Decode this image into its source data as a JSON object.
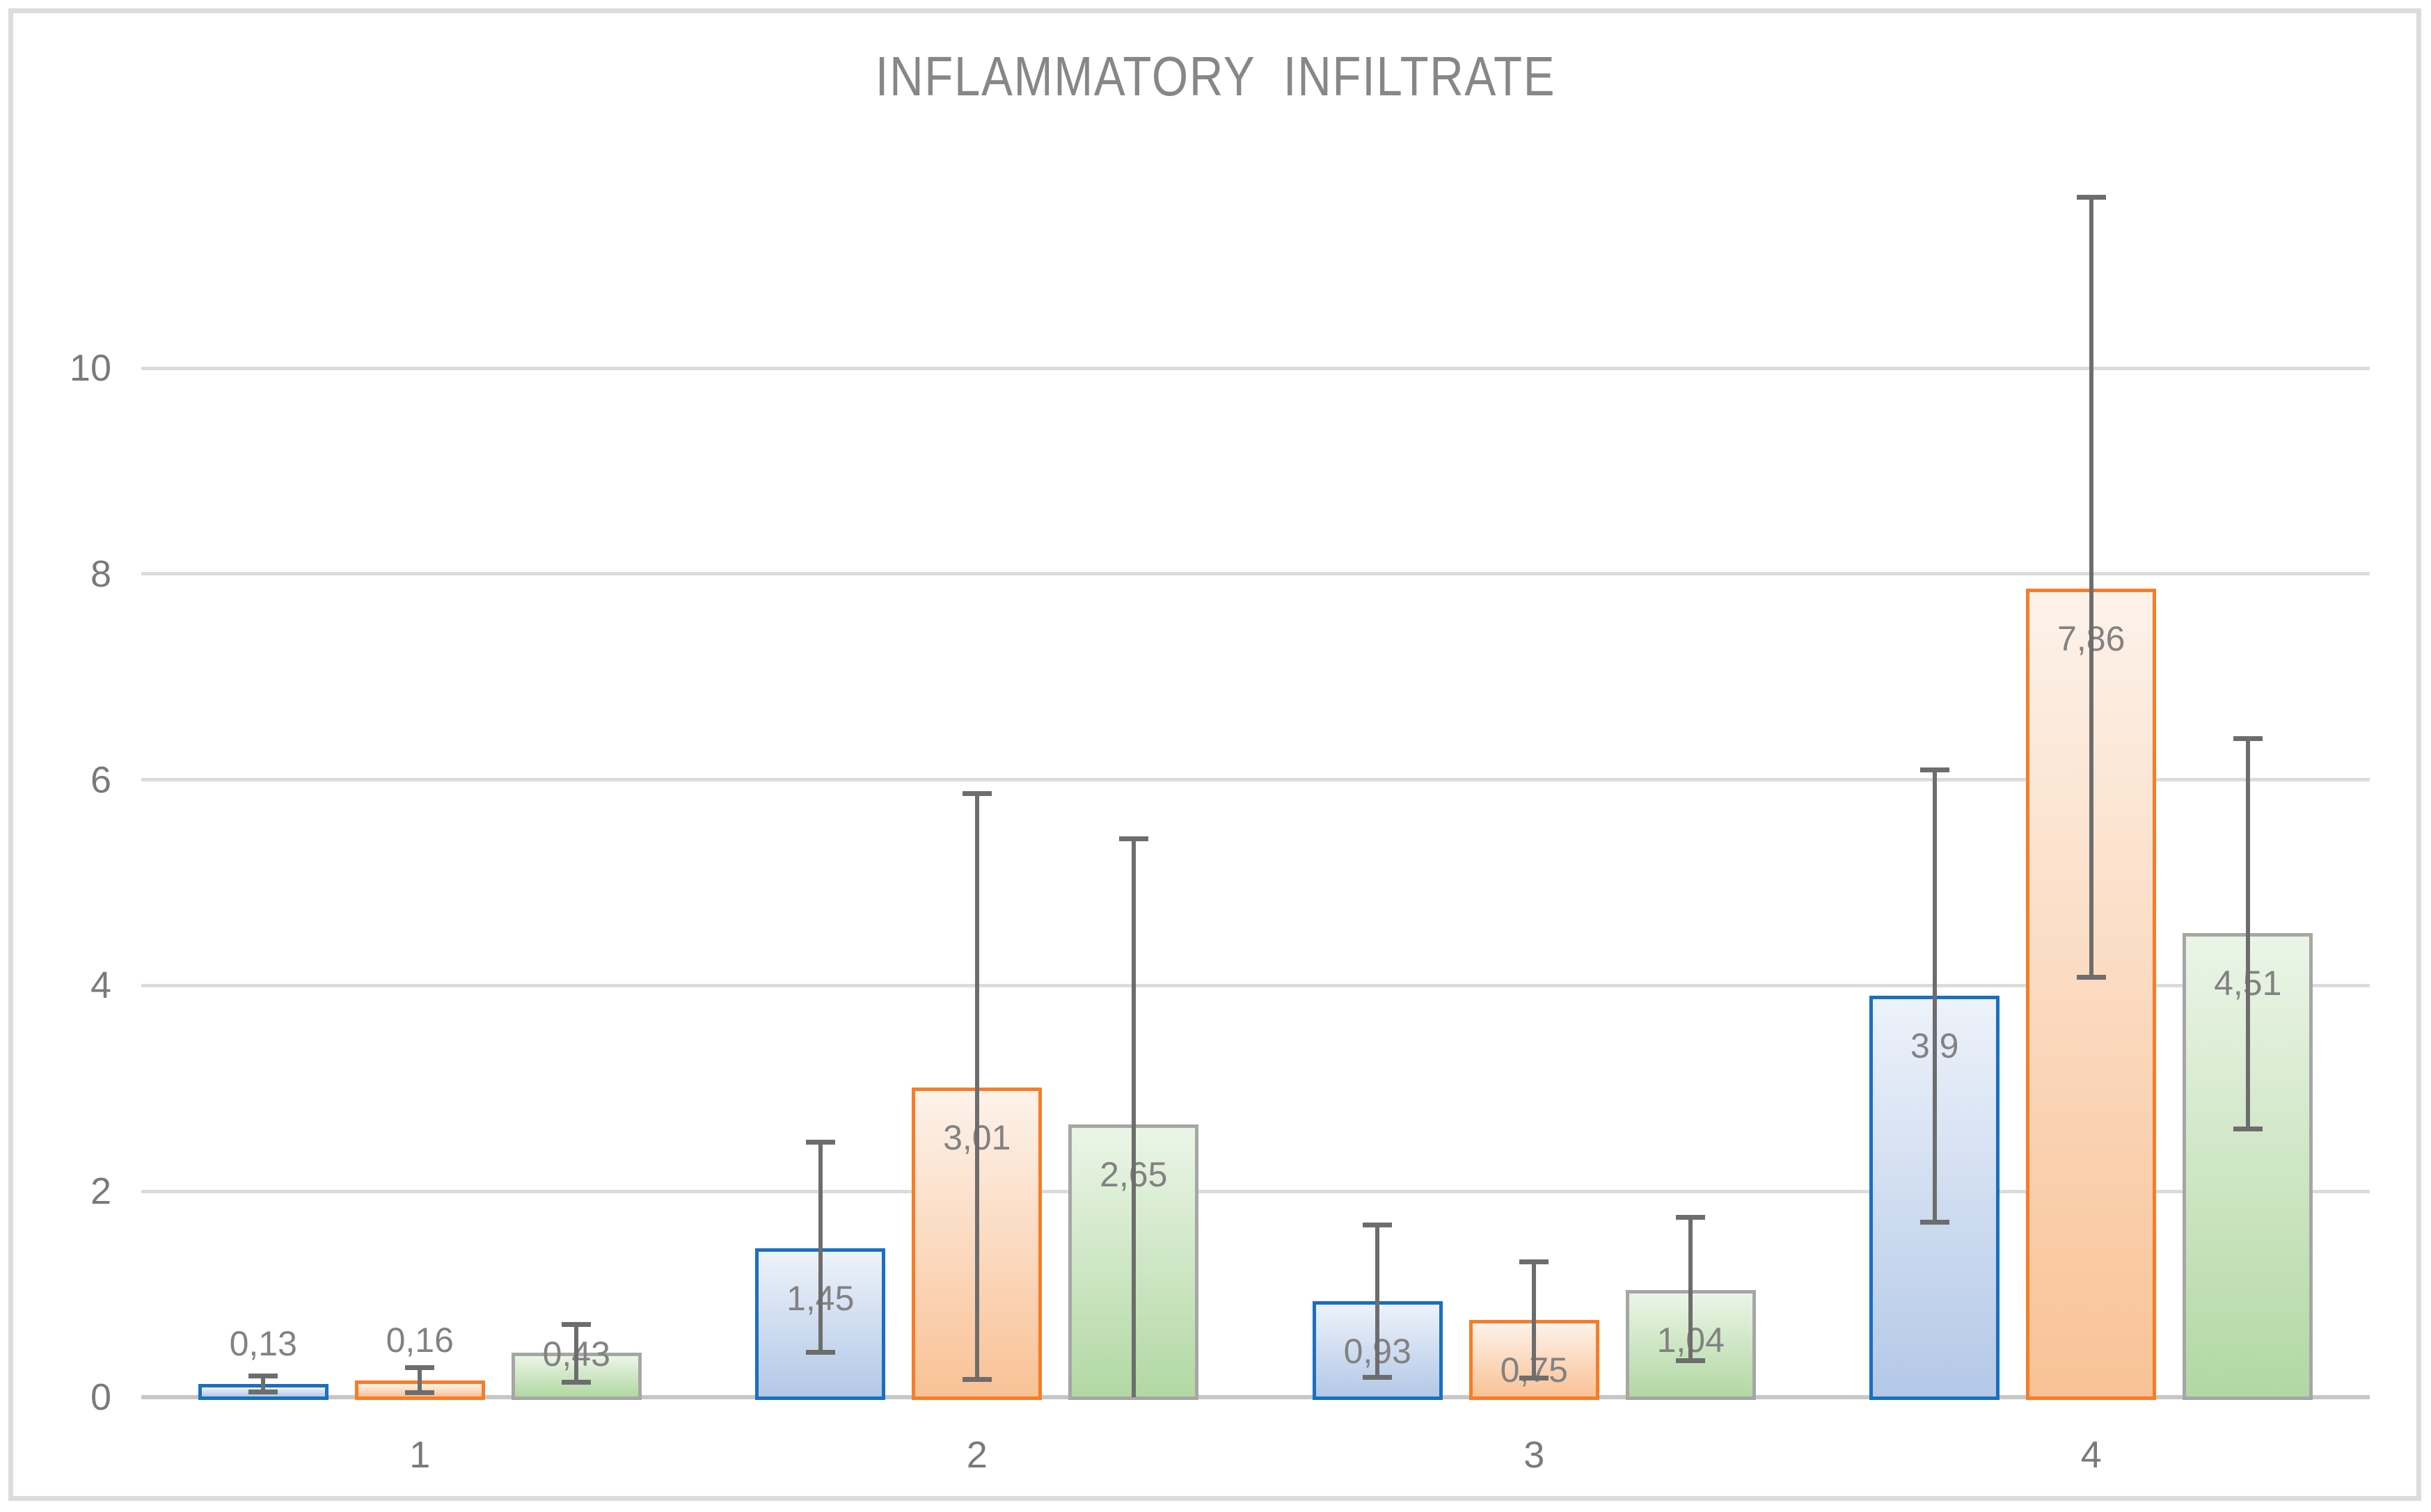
{
  "title_display": "INFLAMMATORY  INFILTRATE",
  "palette": {
    "frame_border": "#dcdcdc",
    "gridline_color": "#dcdcdc",
    "axis_line_color": "#c6c6c6",
    "error_bar_color": "#6d6d6d",
    "tick_text_color": "#7a7a7a",
    "value_label_color": "#828282",
    "title_color": "#878787"
  },
  "chart_data": {
    "type": "bar",
    "title": "INFLAMMATORY INFILTRATE",
    "xlabel": "",
    "ylabel": "",
    "categories": [
      "1",
      "2",
      "3",
      "4"
    ],
    "yticks": [
      0,
      2,
      4,
      6,
      8,
      10
    ],
    "ylim": [
      0,
      12
    ],
    "grid": true,
    "legend": false,
    "decimal_separator": ",",
    "error_bars": true,
    "series": [
      {
        "name": "series-blue",
        "border": "#1a6fc0",
        "fill_top": "#edf2fa",
        "fill_bottom": "#b3c8e7",
        "values": [
          0.13,
          1.45,
          0.93,
          3.9
        ],
        "labels": [
          "0,13",
          "1,45",
          "0,93",
          "3,9"
        ],
        "error_low": [
          0.05,
          0.43,
          0.19,
          1.7
        ],
        "error_high": [
          0.21,
          2.48,
          1.68,
          6.1
        ],
        "label_pos": [
          "above",
          "inside",
          "inside",
          "inside"
        ]
      },
      {
        "name": "series-orange",
        "border": "#f87c28",
        "fill_top": "#fdf2ea",
        "fill_bottom": "#f9c296",
        "values": [
          0.16,
          3.01,
          0.75,
          7.86
        ],
        "labels": [
          "0,16",
          "3,01",
          "0,75",
          "7,86"
        ],
        "error_low": [
          0.04,
          0.17,
          0.18,
          4.08
        ],
        "error_high": [
          0.29,
          5.87,
          1.32,
          11.66
        ],
        "label_pos": [
          "above",
          "inside",
          "inside",
          "inside"
        ]
      },
      {
        "name": "series-green",
        "border": "#a6a6a6",
        "fill_top": "#ebf5e7",
        "fill_bottom": "#b2d8a3",
        "values": [
          0.43,
          2.65,
          1.04,
          4.51
        ],
        "labels": [
          "0,43",
          "2,65",
          "1,04",
          "4,51"
        ],
        "error_low": [
          0.14,
          -0.13,
          0.35,
          2.6
        ],
        "error_high": [
          0.71,
          5.43,
          1.75,
          6.4
        ],
        "label_pos": [
          "straddle",
          "inside",
          "inside",
          "inside"
        ]
      }
    ]
  }
}
